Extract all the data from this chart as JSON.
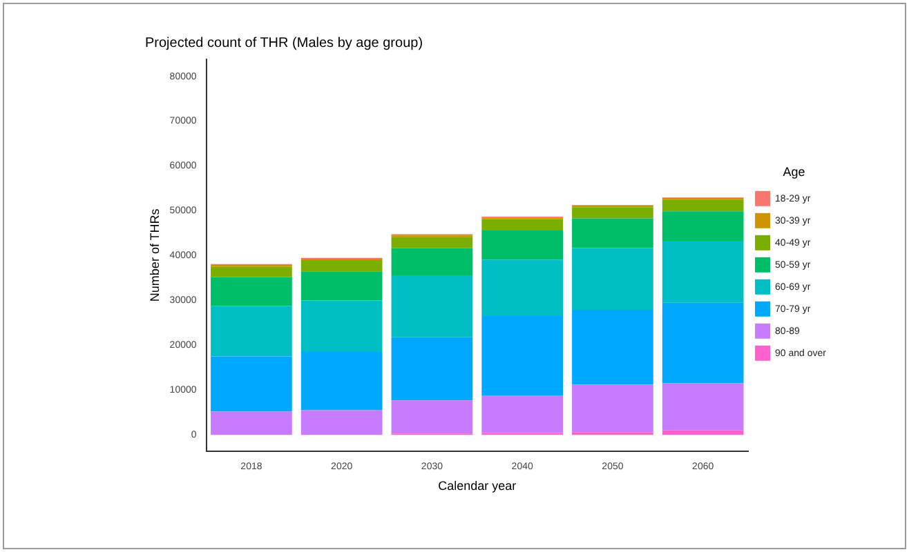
{
  "chart_data": {
    "type": "bar",
    "stacked": true,
    "title": "Projected count of THR (Males by age group)",
    "xlabel": "Calendar year",
    "ylabel": "Number of THRs",
    "legend_title": "Age",
    "legend": "right",
    "grid": false,
    "categories": [
      "2018",
      "2020",
      "2030",
      "2040",
      "2050",
      "2060"
    ],
    "ylim": [
      -3600,
      83800
    ],
    "yticks": [
      0,
      10000,
      20000,
      30000,
      40000,
      50000,
      60000,
      70000,
      80000
    ],
    "series": [
      {
        "name": "90 and over",
        "color": "#ff61cc",
        "values": [
          200,
          200,
          300,
          400,
          600,
          1000
        ]
      },
      {
        "name": "80-89",
        "color": "#c77cff",
        "values": [
          5000,
          5300,
          7400,
          8400,
          10600,
          10500
        ]
      },
      {
        "name": "70-79 yr",
        "color": "#00a9ff",
        "values": [
          12300,
          13000,
          14100,
          17700,
          16700,
          18000
        ]
      },
      {
        "name": "60-69 yr",
        "color": "#00bfc4",
        "values": [
          11300,
          11500,
          13800,
          12600,
          13800,
          13800
        ]
      },
      {
        "name": "50-59 yr",
        "color": "#00be67",
        "values": [
          6400,
          6500,
          6100,
          6500,
          6600,
          6600
        ]
      },
      {
        "name": "40-49 yr",
        "color": "#7cae00",
        "values": [
          2300,
          2500,
          2500,
          2500,
          2500,
          2600
        ]
      },
      {
        "name": "30-39 yr",
        "color": "#cd9600",
        "values": [
          400,
          300,
          400,
          400,
          400,
          400
        ]
      },
      {
        "name": "18-29 yr",
        "color": "#f8766d",
        "values": [
          200,
          200,
          200,
          200,
          100,
          100
        ]
      }
    ]
  }
}
